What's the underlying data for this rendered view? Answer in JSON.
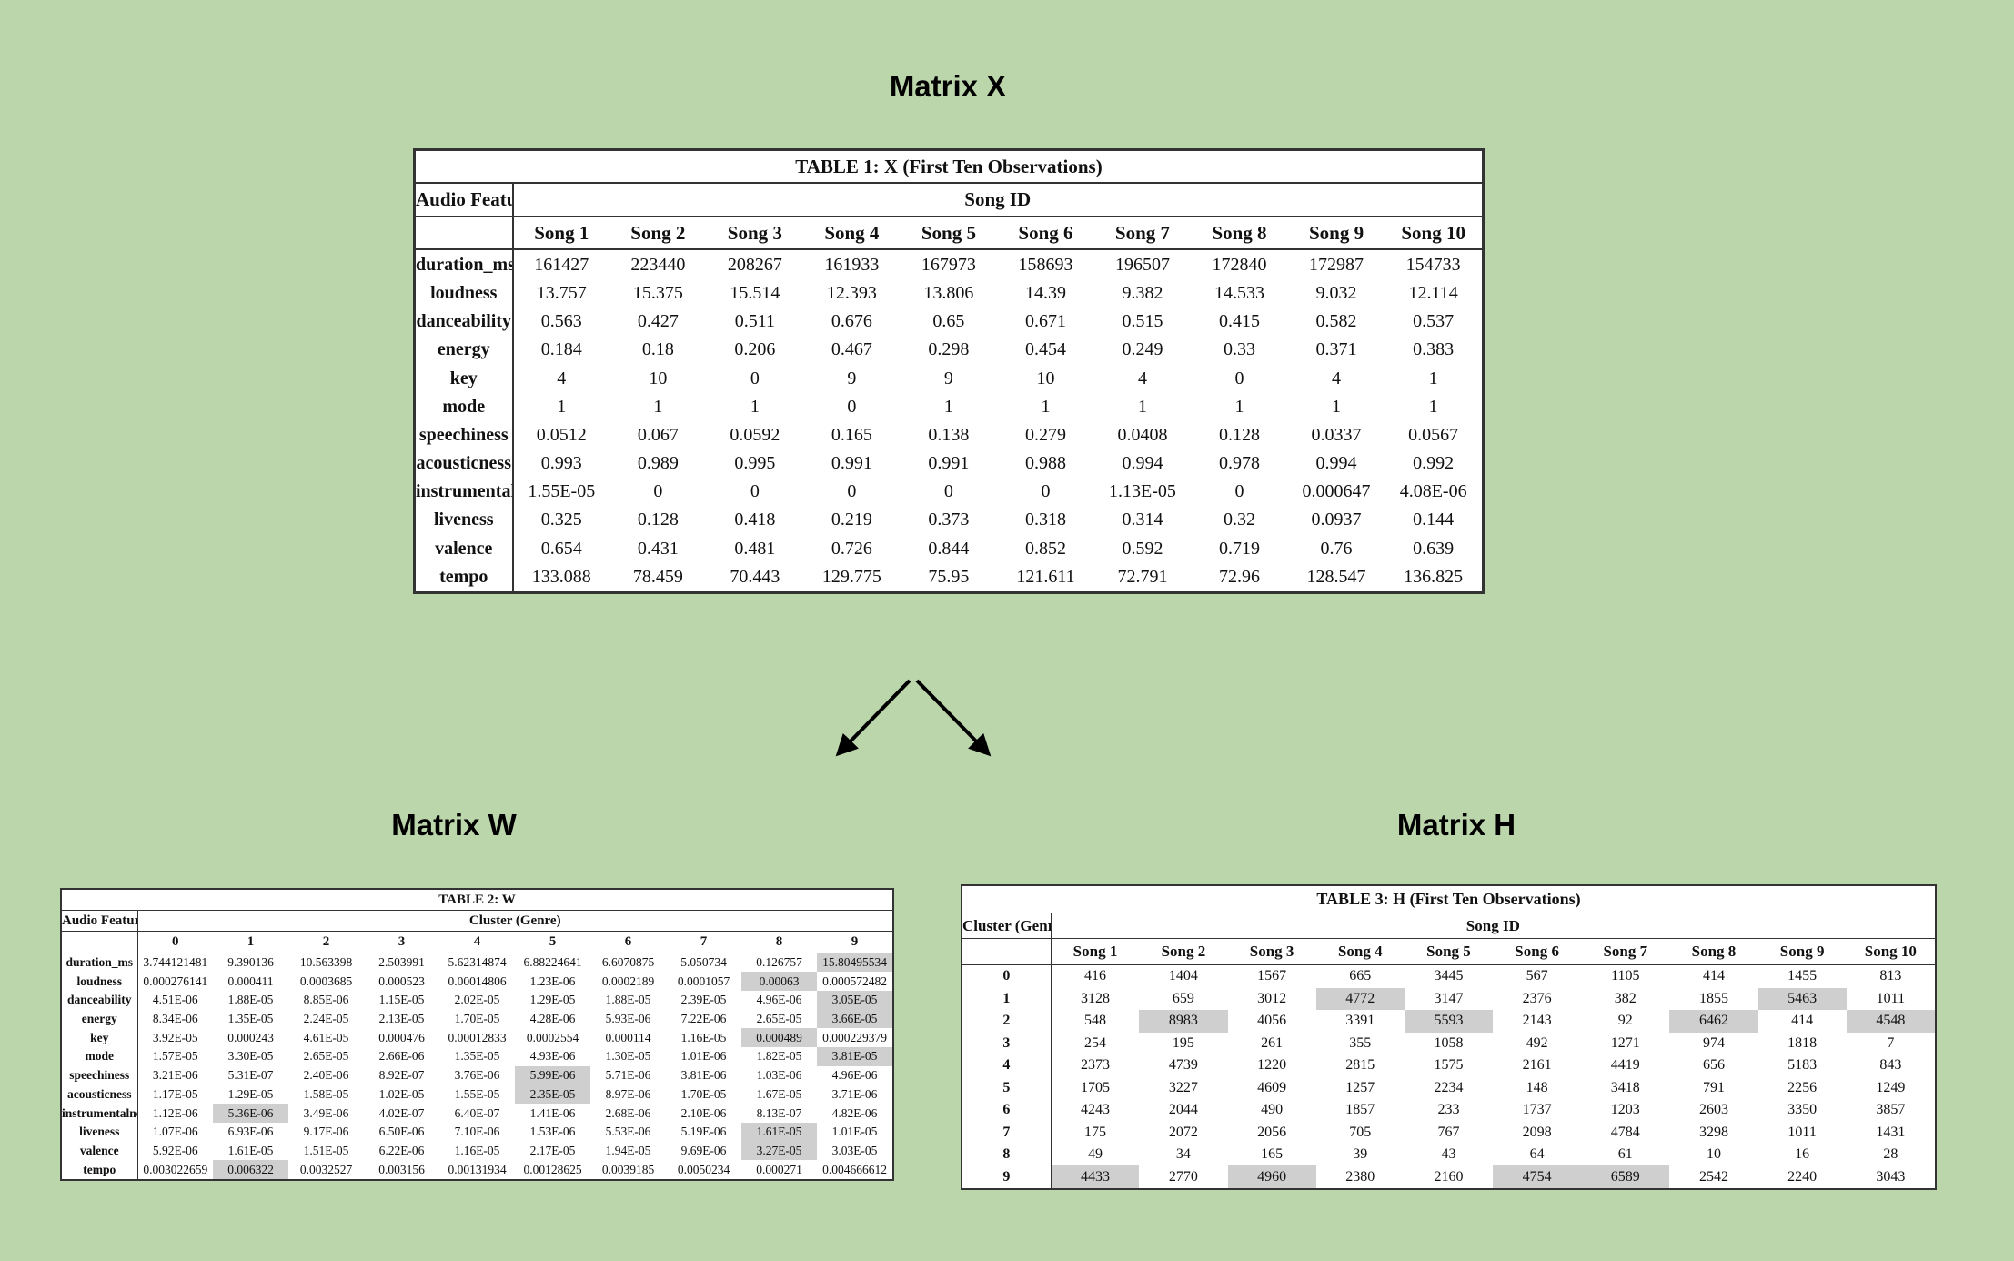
{
  "headings": {
    "x": "Matrix X",
    "w": "Matrix W",
    "h": "Matrix H"
  },
  "table1": {
    "caption": "TABLE 1: X (First Ten Observations)",
    "row_header": "Audio Feature",
    "col_group": "Song ID",
    "columns": [
      "Song 1",
      "Song 2",
      "Song 3",
      "Song 4",
      "Song 5",
      "Song 6",
      "Song 7",
      "Song 8",
      "Song 9",
      "Song 10"
    ],
    "rows": [
      {
        "label": "duration_ms",
        "values": [
          "161427",
          "223440",
          "208267",
          "161933",
          "167973",
          "158693",
          "196507",
          "172840",
          "172987",
          "154733"
        ]
      },
      {
        "label": "loudness",
        "values": [
          "13.757",
          "15.375",
          "15.514",
          "12.393",
          "13.806",
          "14.39",
          "9.382",
          "14.533",
          "9.032",
          "12.114"
        ]
      },
      {
        "label": "danceability",
        "values": [
          "0.563",
          "0.427",
          "0.511",
          "0.676",
          "0.65",
          "0.671",
          "0.515",
          "0.415",
          "0.582",
          "0.537"
        ]
      },
      {
        "label": "energy",
        "values": [
          "0.184",
          "0.18",
          "0.206",
          "0.467",
          "0.298",
          "0.454",
          "0.249",
          "0.33",
          "0.371",
          "0.383"
        ]
      },
      {
        "label": "key",
        "values": [
          "4",
          "10",
          "0",
          "9",
          "9",
          "10",
          "4",
          "0",
          "4",
          "1"
        ]
      },
      {
        "label": "mode",
        "values": [
          "1",
          "1",
          "1",
          "0",
          "1",
          "1",
          "1",
          "1",
          "1",
          "1"
        ]
      },
      {
        "label": "speechiness",
        "values": [
          "0.0512",
          "0.067",
          "0.0592",
          "0.165",
          "0.138",
          "0.279",
          "0.0408",
          "0.128",
          "0.0337",
          "0.0567"
        ]
      },
      {
        "label": "acousticness",
        "values": [
          "0.993",
          "0.989",
          "0.995",
          "0.991",
          "0.991",
          "0.988",
          "0.994",
          "0.978",
          "0.994",
          "0.992"
        ]
      },
      {
        "label": "instrumentalness",
        "values": [
          "1.55E-05",
          "0",
          "0",
          "0",
          "0",
          "0",
          "1.13E-05",
          "0",
          "0.000647",
          "4.08E-06"
        ]
      },
      {
        "label": "liveness",
        "values": [
          "0.325",
          "0.128",
          "0.418",
          "0.219",
          "0.373",
          "0.318",
          "0.314",
          "0.32",
          "0.0937",
          "0.144"
        ]
      },
      {
        "label": "valence",
        "values": [
          "0.654",
          "0.431",
          "0.481",
          "0.726",
          "0.844",
          "0.852",
          "0.592",
          "0.719",
          "0.76",
          "0.639"
        ]
      },
      {
        "label": "tempo",
        "values": [
          "133.088",
          "78.459",
          "70.443",
          "129.775",
          "75.95",
          "121.611",
          "72.791",
          "72.96",
          "128.547",
          "136.825"
        ]
      }
    ]
  },
  "table2": {
    "caption": "TABLE 2: W",
    "row_header": "Audio Feature",
    "col_group": "Cluster (Genre)",
    "columns": [
      "0",
      "1",
      "2",
      "3",
      "4",
      "5",
      "6",
      "7",
      "8",
      "9"
    ],
    "rows": [
      {
        "label": "duration_ms",
        "values": [
          "3.744121481",
          "9.390136",
          "10.563398",
          "2.503991",
          "5.62314874",
          "6.88224641",
          "6.6070875",
          "5.050734",
          "0.126757",
          "15.80495534"
        ],
        "hl": [
          9
        ]
      },
      {
        "label": "loudness",
        "values": [
          "0.000276141",
          "0.000411",
          "0.0003685",
          "0.000523",
          "0.00014806",
          "1.23E-06",
          "0.0002189",
          "0.0001057",
          "0.00063",
          "0.000572482"
        ],
        "hl": [
          8
        ]
      },
      {
        "label": "danceability",
        "values": [
          "4.51E-06",
          "1.88E-05",
          "8.85E-06",
          "1.15E-05",
          "2.02E-05",
          "1.29E-05",
          "1.88E-05",
          "2.39E-05",
          "4.96E-06",
          "3.05E-05"
        ],
        "hl": [
          9
        ]
      },
      {
        "label": "energy",
        "values": [
          "8.34E-06",
          "1.35E-05",
          "2.24E-05",
          "2.13E-05",
          "1.70E-05",
          "4.28E-06",
          "5.93E-06",
          "7.22E-06",
          "2.65E-05",
          "3.66E-05"
        ],
        "hl": [
          9
        ]
      },
      {
        "label": "key",
        "values": [
          "3.92E-05",
          "0.000243",
          "4.61E-05",
          "0.000476",
          "0.00012833",
          "0.0002554",
          "0.000114",
          "1.16E-05",
          "0.000489",
          "0.000229379"
        ],
        "hl": [
          8
        ]
      },
      {
        "label": "mode",
        "values": [
          "1.57E-05",
          "3.30E-05",
          "2.65E-05",
          "2.66E-06",
          "1.35E-05",
          "4.93E-06",
          "1.30E-05",
          "1.01E-06",
          "1.82E-05",
          "3.81E-05"
        ],
        "hl": [
          9
        ]
      },
      {
        "label": "speechiness",
        "values": [
          "3.21E-06",
          "5.31E-07",
          "2.40E-06",
          "8.92E-07",
          "3.76E-06",
          "5.99E-06",
          "5.71E-06",
          "3.81E-06",
          "1.03E-06",
          "4.96E-06"
        ],
        "hl": [
          5
        ]
      },
      {
        "label": "acousticness",
        "values": [
          "1.17E-05",
          "1.29E-05",
          "1.58E-05",
          "1.02E-05",
          "1.55E-05",
          "2.35E-05",
          "8.97E-06",
          "1.70E-05",
          "1.67E-05",
          "3.71E-06"
        ],
        "hl": [
          5
        ]
      },
      {
        "label": "instrumentalness",
        "values": [
          "1.12E-06",
          "5.36E-06",
          "3.49E-06",
          "4.02E-07",
          "6.40E-07",
          "1.41E-06",
          "2.68E-06",
          "2.10E-06",
          "8.13E-07",
          "4.82E-06"
        ],
        "hl": [
          1
        ]
      },
      {
        "label": "liveness",
        "values": [
          "1.07E-06",
          "6.93E-06",
          "9.17E-06",
          "6.50E-06",
          "7.10E-06",
          "1.53E-06",
          "5.53E-06",
          "5.19E-06",
          "1.61E-05",
          "1.01E-05"
        ],
        "hl": [
          8
        ]
      },
      {
        "label": "valence",
        "values": [
          "5.92E-06",
          "1.61E-05",
          "1.51E-05",
          "6.22E-06",
          "1.16E-05",
          "2.17E-05",
          "1.94E-05",
          "9.69E-06",
          "3.27E-05",
          "3.03E-05"
        ],
        "hl": [
          8
        ]
      },
      {
        "label": "tempo",
        "values": [
          "0.003022659",
          "0.006322",
          "0.0032527",
          "0.003156",
          "0.00131934",
          "0.00128625",
          "0.0039185",
          "0.0050234",
          "0.000271",
          "0.004666612"
        ],
        "hl": [
          1
        ]
      }
    ]
  },
  "table3": {
    "caption": "TABLE 3: H  (First Ten Observations)",
    "row_header": "Cluster (Genre)",
    "col_group": "Song ID",
    "columns": [
      "Song 1",
      "Song 2",
      "Song 3",
      "Song 4",
      "Song 5",
      "Song 6",
      "Song 7",
      "Song 8",
      "Song 9",
      "Song 10"
    ],
    "rows": [
      {
        "label": "0",
        "values": [
          "416",
          "1404",
          "1567",
          "665",
          "3445",
          "567",
          "1105",
          "414",
          "1455",
          "813"
        ],
        "hl": []
      },
      {
        "label": "1",
        "values": [
          "3128",
          "659",
          "3012",
          "4772",
          "3147",
          "2376",
          "382",
          "1855",
          "5463",
          "1011"
        ],
        "hl": [
          3,
          8
        ]
      },
      {
        "label": "2",
        "values": [
          "548",
          "8983",
          "4056",
          "3391",
          "5593",
          "2143",
          "92",
          "6462",
          "414",
          "4548"
        ],
        "hl": [
          1,
          4,
          7,
          9
        ]
      },
      {
        "label": "3",
        "values": [
          "254",
          "195",
          "261",
          "355",
          "1058",
          "492",
          "1271",
          "974",
          "1818",
          "7"
        ],
        "hl": []
      },
      {
        "label": "4",
        "values": [
          "2373",
          "4739",
          "1220",
          "2815",
          "1575",
          "2161",
          "4419",
          "656",
          "5183",
          "843"
        ],
        "hl": []
      },
      {
        "label": "5",
        "values": [
          "1705",
          "3227",
          "4609",
          "1257",
          "2234",
          "148",
          "3418",
          "791",
          "2256",
          "1249"
        ],
        "hl": []
      },
      {
        "label": "6",
        "values": [
          "4243",
          "2044",
          "490",
          "1857",
          "233",
          "1737",
          "1203",
          "2603",
          "3350",
          "3857"
        ],
        "hl": []
      },
      {
        "label": "7",
        "values": [
          "175",
          "2072",
          "2056",
          "705",
          "767",
          "2098",
          "4784",
          "3298",
          "1011",
          "1431"
        ],
        "hl": []
      },
      {
        "label": "8",
        "values": [
          "49",
          "34",
          "165",
          "39",
          "43",
          "64",
          "61",
          "10",
          "16",
          "28"
        ],
        "hl": []
      },
      {
        "label": "9",
        "values": [
          "4433",
          "2770",
          "4960",
          "2380",
          "2160",
          "4754",
          "6589",
          "2542",
          "2240",
          "3043"
        ],
        "hl": [
          0,
          2,
          5,
          6
        ]
      }
    ]
  }
}
